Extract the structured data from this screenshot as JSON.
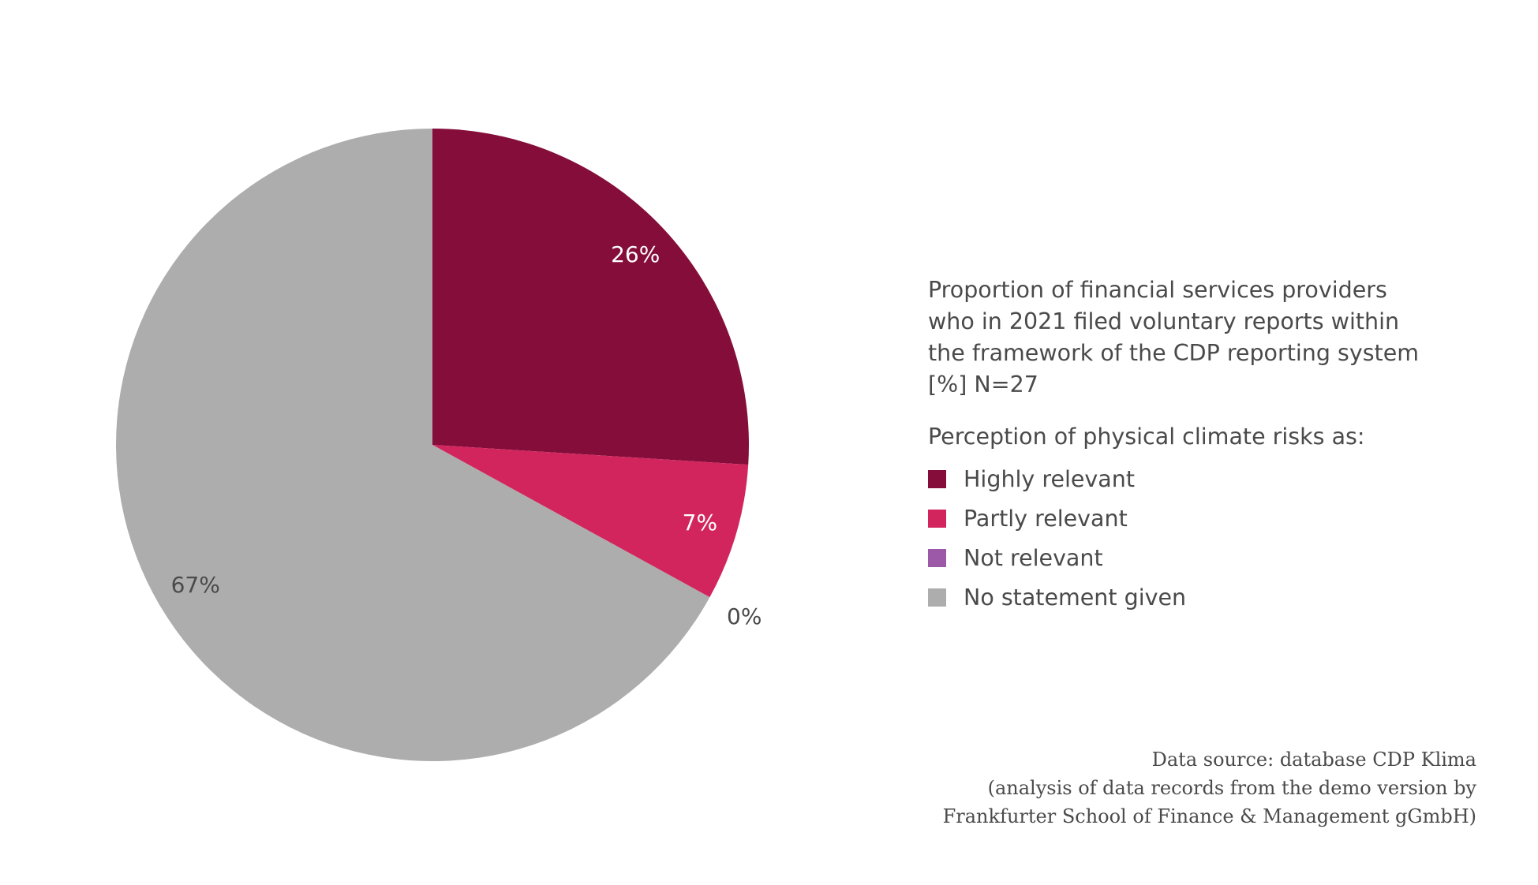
{
  "chart_data": {
    "type": "pie",
    "title_lines": [
      "Proportion of financial services providers",
      "who in 2021 filed voluntary reports within",
      "the framework of the CDP reporting system",
      "[%] N=27"
    ],
    "subtitle": "Perception of physical climate risks as:",
    "slices": [
      {
        "name": "Highly relevant",
        "value": 26,
        "label": "26%",
        "color": "#850d3a",
        "label_color": "#ffffff"
      },
      {
        "name": "Partly relevant",
        "value": 7,
        "label": "7%",
        "color": "#d2255e",
        "label_color": "#ffffff"
      },
      {
        "name": "Not relevant",
        "value": 0,
        "label": "0%",
        "color": "#9b59a8",
        "label_color": "#4a4a4a"
      },
      {
        "name": "No statement given",
        "value": 67,
        "label": "67%",
        "color": "#adadad",
        "label_color": "#4a4a4a"
      }
    ],
    "start_angle_deg": 0,
    "direction": "clockwise",
    "legend_position": "right"
  },
  "source_lines": [
    "Data source: database CDP Klima",
    "(analysis of data records from the demo version by",
    "Frankfurter School of Finance & Management gGmbH)"
  ]
}
